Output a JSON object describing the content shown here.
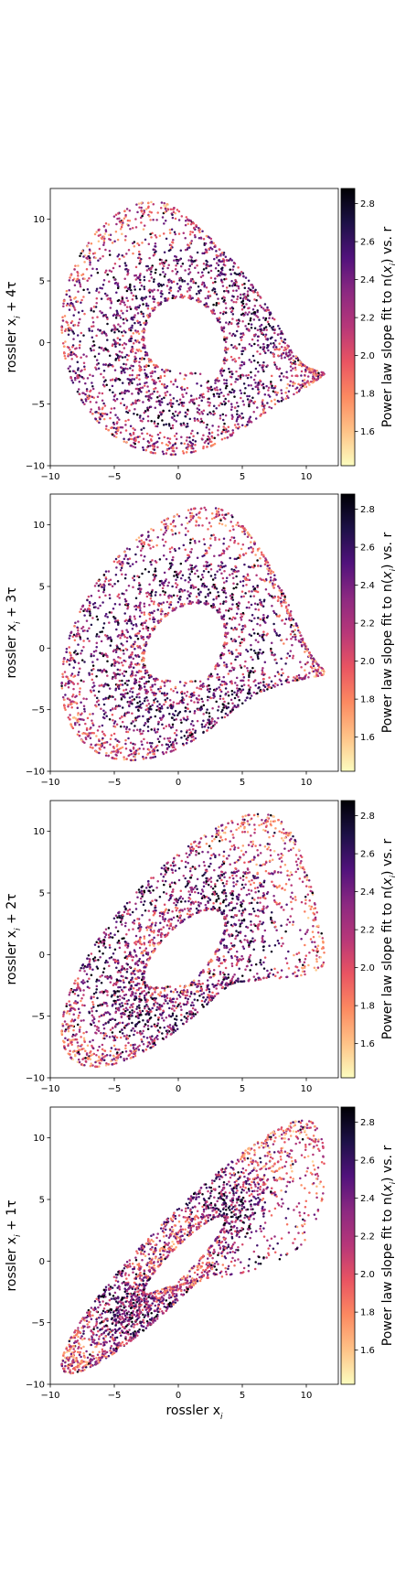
{
  "chart_data": [
    {
      "type": "scatter",
      "attractor": "rossler",
      "ylabel": "rossler x_i + 4τ",
      "xlabel": "",
      "xlim": [
        -10,
        12.5
      ],
      "ylim": [
        -10,
        12.5
      ],
      "xticks": [
        -10,
        -5,
        0,
        5,
        10
      ],
      "yticks": [
        -10,
        -5,
        0,
        5,
        10
      ],
      "lag": 4,
      "colorbar": {
        "label": "Power law slope fit to n(x_i) vs. r",
        "ticks": [
          1.6,
          1.8,
          2.0,
          2.2,
          2.4,
          2.6,
          2.8
        ],
        "range": [
          1.42,
          2.88
        ],
        "colormap": "magma_r"
      }
    },
    {
      "type": "scatter",
      "attractor": "rossler",
      "ylabel": "rossler x_i + 3τ",
      "xlabel": "",
      "xlim": [
        -10,
        12.5
      ],
      "ylim": [
        -10,
        12.5
      ],
      "xticks": [
        -10,
        -5,
        0,
        5,
        10
      ],
      "yticks": [
        -10,
        -5,
        0,
        5,
        10
      ],
      "lag": 3,
      "colorbar": {
        "label": "Power law slope fit to n(x_i) vs. r",
        "ticks": [
          1.6,
          1.8,
          2.0,
          2.2,
          2.4,
          2.6,
          2.8
        ],
        "range": [
          1.42,
          2.88
        ],
        "colormap": "magma_r"
      }
    },
    {
      "type": "scatter",
      "attractor": "rossler",
      "ylabel": "rossler x_i + 2τ",
      "xlabel": "",
      "xlim": [
        -10,
        12.5
      ],
      "ylim": [
        -10,
        12.5
      ],
      "xticks": [
        -10,
        -5,
        0,
        5,
        10
      ],
      "yticks": [
        -10,
        -5,
        0,
        5,
        10
      ],
      "lag": 2,
      "colorbar": {
        "label": "Power law slope fit to n(x_i) vs. r",
        "ticks": [
          1.6,
          1.8,
          2.0,
          2.2,
          2.4,
          2.6,
          2.8
        ],
        "range": [
          1.42,
          2.88
        ],
        "colormap": "magma_r"
      }
    },
    {
      "type": "scatter",
      "attractor": "rossler",
      "ylabel": "rossler x_i + 1τ",
      "xlabel": "rossler x_i",
      "xlim": [
        -10,
        12.5
      ],
      "ylim": [
        -10,
        12.5
      ],
      "xticks": [
        -10,
        -5,
        0,
        5,
        10
      ],
      "yticks": [
        -10,
        -5,
        0,
        5,
        10
      ],
      "lag": 1,
      "colorbar": {
        "label": "Power law slope fit to n(x_i) vs. r",
        "ticks": [
          1.6,
          1.8,
          2.0,
          2.2,
          2.4,
          2.6,
          2.8
        ],
        "range": [
          1.42,
          2.88
        ],
        "colormap": "magma_r"
      }
    }
  ]
}
